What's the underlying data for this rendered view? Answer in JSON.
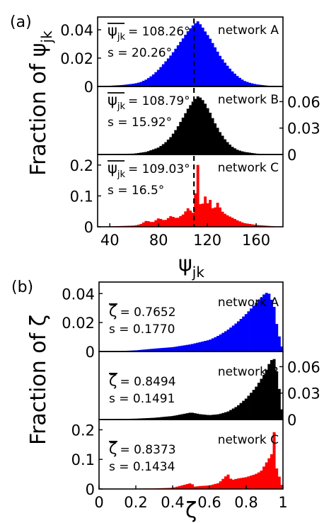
{
  "panel_a_label": "(a)",
  "panel_b_label": "(b)",
  "y_label_a_main": "Fraction of ψ",
  "y_label_a_sub": "jk",
  "x_label_a_main": "ψ",
  "x_label_a_sub": "jk",
  "y_label_b": "Fraction of ζ",
  "x_label_b": "ζ",
  "chart_data": [
    {
      "type": "bar",
      "group": "a",
      "xlim": [
        30,
        182
      ],
      "x_ticks": [
        "40",
        "80",
        "120",
        "160"
      ],
      "x_tick_values": [
        40,
        80,
        120,
        160
      ],
      "mean_marker": 109,
      "subplots": [
        {
          "name": "network A",
          "color": "#0000ff",
          "ylim": [
            0,
            0.047
          ],
          "y_ticks": [
            "0",
            "0.02",
            "0.04"
          ],
          "y_tick_values": [
            0,
            0.02,
            0.04
          ],
          "y_axis_side": "left",
          "stats": {
            "mean_symbol": "ψ",
            "mean_sub": "jk",
            "mean_text": "= 108.26°",
            "s_text": "s = 20.26°"
          },
          "x": [
            30,
            40,
            50,
            60,
            65,
            70,
            75,
            80,
            85,
            90,
            95,
            100,
            104,
            108,
            112,
            115,
            118,
            122,
            126,
            130,
            135,
            140,
            145,
            150,
            155,
            160,
            165,
            170,
            175,
            180
          ],
          "y": [
            0,
            0.0005,
            0.001,
            0.002,
            0.003,
            0.005,
            0.008,
            0.012,
            0.017,
            0.022,
            0.028,
            0.034,
            0.039,
            0.043,
            0.046,
            0.043,
            0.039,
            0.034,
            0.028,
            0.022,
            0.016,
            0.011,
            0.007,
            0.004,
            0.0025,
            0.0015,
            0.001,
            0.0005,
            0.0003,
            0
          ]
        },
        {
          "name": "network B",
          "color": "#000000",
          "ylim": [
            0,
            0.074
          ],
          "y_ticks": [
            "0",
            "0.03",
            "0.06"
          ],
          "y_tick_values": [
            0,
            0.03,
            0.06
          ],
          "y_axis_side": "right",
          "stats": {
            "mean_symbol": "ψ",
            "mean_sub": "jk",
            "mean_text": "= 108.79°",
            "s_text": "s = 15.92°"
          },
          "x": [
            30,
            60,
            70,
            80,
            85,
            90,
            95,
            100,
            104,
            108,
            112,
            115,
            118,
            122,
            126,
            130,
            135,
            140,
            145,
            150,
            160,
            170,
            180
          ],
          "y": [
            0,
            0.001,
            0.003,
            0.008,
            0.013,
            0.02,
            0.03,
            0.042,
            0.052,
            0.06,
            0.066,
            0.064,
            0.058,
            0.048,
            0.036,
            0.026,
            0.016,
            0.009,
            0.005,
            0.003,
            0.001,
            0.0003,
            0
          ]
        },
        {
          "name": "network C",
          "color": "#ff0000",
          "ylim": [
            0,
            0.225
          ],
          "y_ticks": [
            "0",
            "0.1",
            "0.2"
          ],
          "y_tick_values": [
            0,
            0.1,
            0.2
          ],
          "y_axis_side": "left",
          "stats": {
            "mean_symbol": "ψ",
            "mean_sub": "jk",
            "mean_text": "= 109.03°",
            "s_text": "s = 16.5°"
          },
          "x": [
            30,
            60,
            65,
            70,
            75,
            80,
            85,
            90,
            95,
            100,
            104,
            108,
            110,
            111,
            112,
            113,
            115,
            118,
            120,
            122,
            125,
            128,
            132,
            135,
            140,
            145,
            150,
            160,
            180
          ],
          "y": [
            0,
            0.004,
            0.008,
            0.02,
            0.014,
            0.028,
            0.02,
            0.035,
            0.027,
            0.04,
            0.06,
            0.045,
            0.11,
            0.08,
            0.21,
            0.09,
            0.06,
            0.1,
            0.075,
            0.09,
            0.05,
            0.08,
            0.05,
            0.04,
            0.03,
            0.02,
            0.012,
            0.006,
            0
          ]
        }
      ]
    },
    {
      "type": "bar",
      "group": "b",
      "xlim": [
        0,
        1
      ],
      "x_ticks": [
        "0",
        "0.2",
        "0.4",
        "0.6",
        "0.8",
        "1"
      ],
      "x_tick_values": [
        0,
        0.2,
        0.4,
        0.6,
        0.8,
        1
      ],
      "subplots": [
        {
          "name": "network A",
          "color": "#0000ff",
          "ylim": [
            0,
            0.046
          ],
          "y_ticks": [
            "0",
            "0.02",
            "0.04"
          ],
          "y_tick_values": [
            0,
            0.02,
            0.04
          ],
          "y_axis_side": "left",
          "stats": {
            "mean_symbol": "ζ",
            "mean_text": "= 0.7652",
            "s_text": "s = 0.1770"
          },
          "x": [
            0,
            0.1,
            0.2,
            0.3,
            0.4,
            0.5,
            0.6,
            0.65,
            0.7,
            0.75,
            0.8,
            0.85,
            0.88,
            0.9,
            0.92,
            0.95,
            0.97,
            1
          ],
          "y": [
            0,
            0.0002,
            0.0008,
            0.002,
            0.003,
            0.005,
            0.008,
            0.011,
            0.015,
            0.02,
            0.026,
            0.033,
            0.037,
            0.04,
            0.041,
            0.032,
            0.015,
            0
          ]
        },
        {
          "name": "network B",
          "color": "#000000",
          "ylim": [
            0,
            0.074
          ],
          "y_ticks": [
            "0",
            "0.03",
            "0.06"
          ],
          "y_tick_values": [
            0,
            0.03,
            0.06
          ],
          "y_axis_side": "right",
          "stats": {
            "mean_symbol": "ζ",
            "mean_text": "= 0.8494",
            "s_text": "s = 0.1491"
          },
          "x": [
            0,
            0.2,
            0.3,
            0.4,
            0.45,
            0.5,
            0.55,
            0.6,
            0.65,
            0.7,
            0.75,
            0.8,
            0.85,
            0.9,
            0.93,
            0.95,
            0.97,
            1
          ],
          "y": [
            0,
            0.001,
            0.002,
            0.004,
            0.006,
            0.008,
            0.006,
            0.005,
            0.006,
            0.009,
            0.015,
            0.024,
            0.036,
            0.052,
            0.066,
            0.07,
            0.05,
            0
          ]
        },
        {
          "name": "network C",
          "color": "#ff0000",
          "ylim": [
            0,
            0.225
          ],
          "y_ticks": [
            "0",
            "0.1",
            "0.2"
          ],
          "y_tick_values": [
            0,
            0.1,
            0.2
          ],
          "y_axis_side": "left",
          "stats": {
            "mean_symbol": "ζ",
            "mean_text": "= 0.8373",
            "s_text": "s = 0.1434"
          },
          "x": [
            0,
            0.3,
            0.4,
            0.5,
            0.52,
            0.55,
            0.6,
            0.65,
            0.7,
            0.72,
            0.75,
            0.8,
            0.85,
            0.88,
            0.9,
            0.92,
            0.94,
            0.95,
            0.96,
            0.98,
            1
          ],
          "y": [
            0,
            0.002,
            0.004,
            0.02,
            0.008,
            0.01,
            0.012,
            0.02,
            0.05,
            0.03,
            0.035,
            0.04,
            0.05,
            0.06,
            0.08,
            0.1,
            0.12,
            0.21,
            0.08,
            0.04,
            0
          ]
        }
      ]
    }
  ]
}
